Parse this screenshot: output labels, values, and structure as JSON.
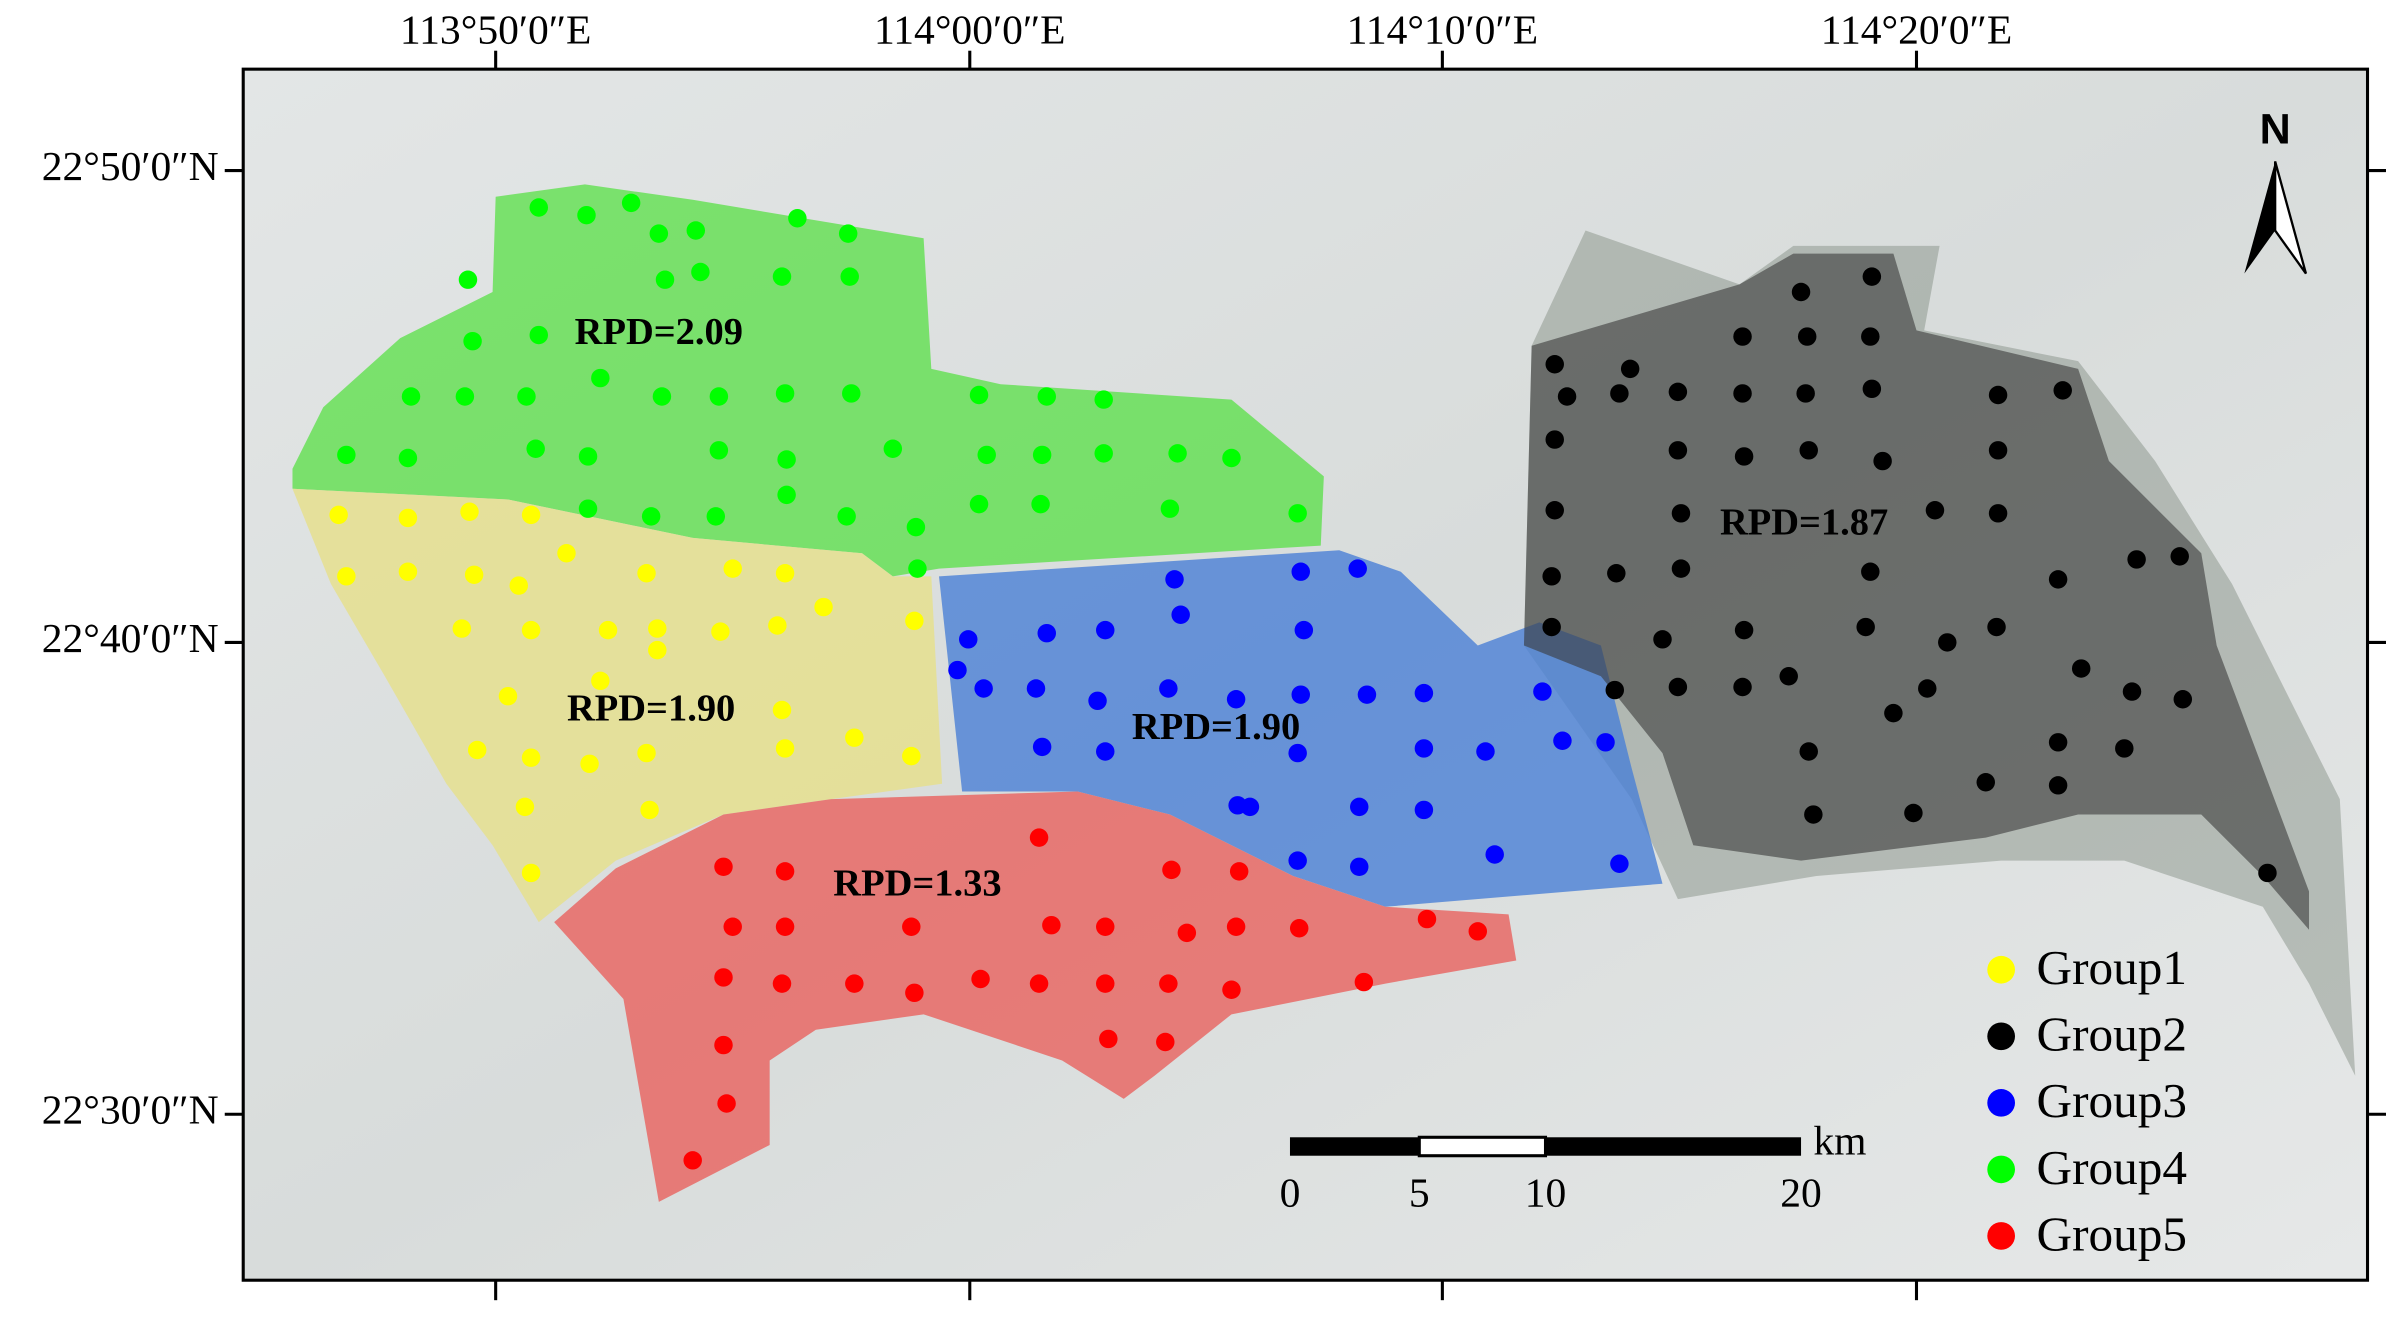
{
  "map": {
    "x_ticks": [
      "113°50′0″E",
      "114°00′0″E",
      "114°10′0″E",
      "114°20′0″E"
    ],
    "y_ticks": [
      "22°50′0″N",
      "22°40′0″N",
      "22°30′0″N"
    ],
    "north": "N",
    "regions": [
      {
        "label": "RPD=2.09"
      },
      {
        "label": "RPD=1.90"
      },
      {
        "label": "RPD=1.90"
      },
      {
        "label": "RPD=1.33"
      },
      {
        "label": "RPD=1.87"
      }
    ],
    "legend": [
      {
        "name": "Group1",
        "color": "#ffff00"
      },
      {
        "name": "Group2",
        "color": "#000000"
      },
      {
        "name": "Group3",
        "color": "#0000ff"
      },
      {
        "name": "Group4",
        "color": "#00ff00"
      },
      {
        "name": "Group5",
        "color": "#ff0000"
      }
    ],
    "scale_bar": {
      "unit": "km",
      "labels": [
        "0",
        "5",
        "10",
        "20"
      ]
    }
  }
}
